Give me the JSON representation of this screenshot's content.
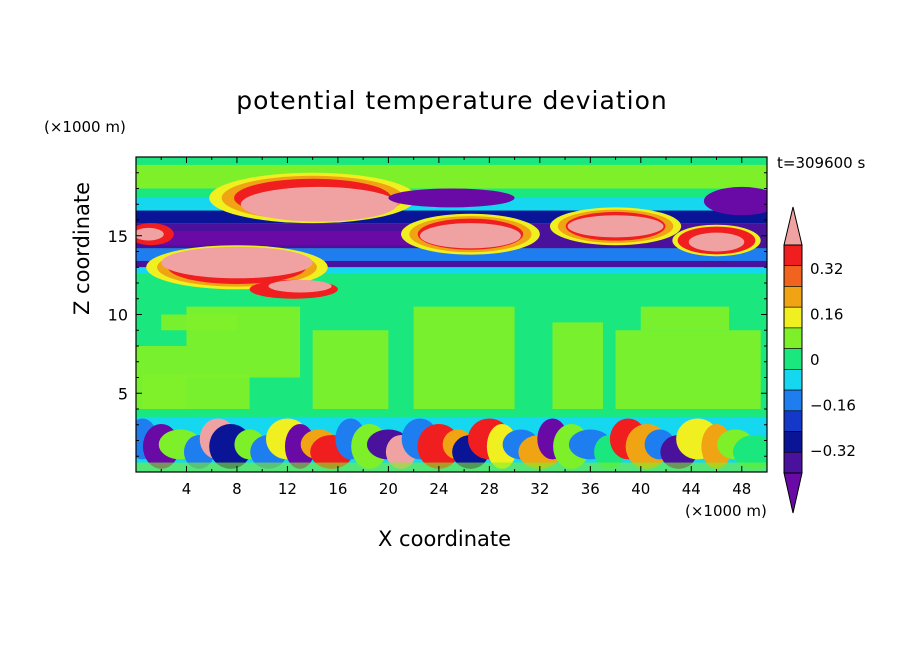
{
  "chart_data": {
    "type": "heatmap",
    "title": "potential temperature deviation",
    "xlabel": "X coordinate",
    "ylabel": "Z coordinate",
    "x_unit": "(×1000 m)",
    "y_unit": "(×1000 m)",
    "time_label": "t=309600 s",
    "xlim": [
      0,
      50
    ],
    "ylim": [
      0,
      20
    ],
    "x_ticks": [
      4,
      8,
      12,
      16,
      20,
      24,
      28,
      32,
      36,
      40,
      44,
      48
    ],
    "y_ticks": [
      5,
      10,
      15
    ],
    "colorbar": {
      "levels": [
        -0.48,
        -0.4,
        -0.32,
        -0.24,
        -0.16,
        -0.08,
        0,
        0.08,
        0.16,
        0.24,
        0.32,
        0.4,
        0.48
      ],
      "colors": [
        "#6a0aa6",
        "#4a129c",
        "#0a1496",
        "#1438c8",
        "#1e7ef0",
        "#15d8f0",
        "#1ae87e",
        "#7ef02a",
        "#f0f020",
        "#f0a414",
        "#f06420",
        "#f01e1e",
        "#f0a2a2"
      ],
      "tick_labels": [
        "0.32",
        "0.16",
        "0",
        "−0.16",
        "−0.32"
      ],
      "tick_values": [
        0.32,
        0.16,
        0,
        -0.16,
        -0.32
      ]
    },
    "field_description_regions": {
      "background_value": 0,
      "lower_layer_z": [
        0,
        3.5
      ],
      "upper_layer_z": [
        12,
        20
      ]
    }
  }
}
